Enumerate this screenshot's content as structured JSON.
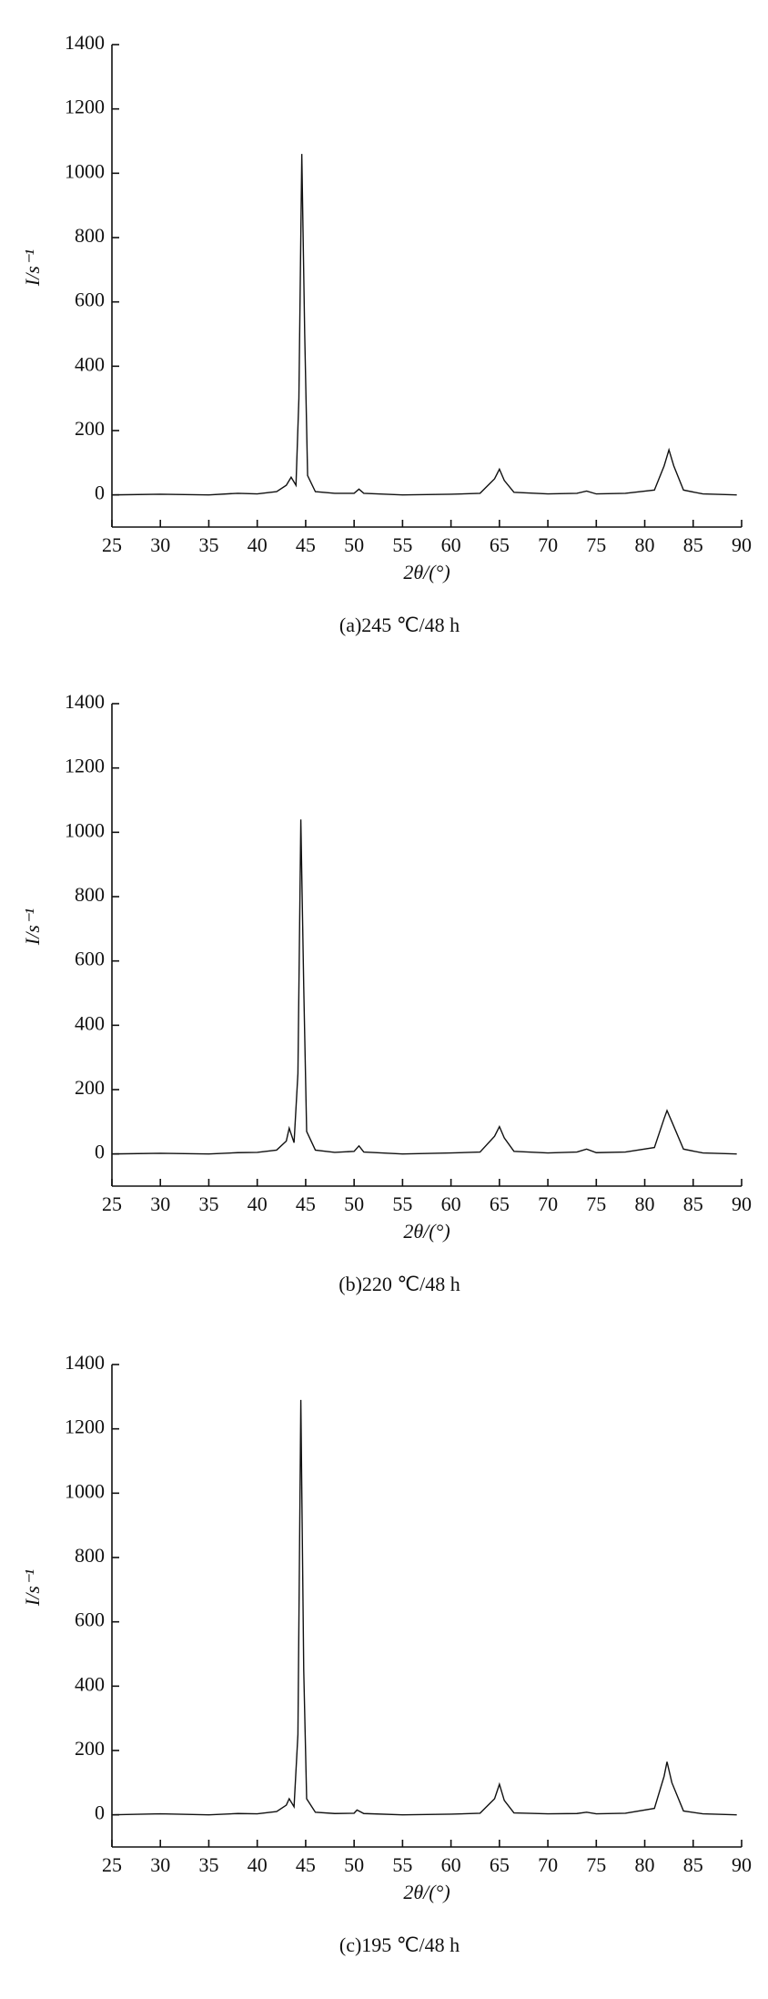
{
  "chart_data": [
    {
      "type": "line",
      "x_label": "2θ/(°)",
      "y_label": "I/s⁻¹",
      "caption": "(a)245 ℃/48 h",
      "color": "#111111",
      "x": [
        25,
        30,
        35,
        38,
        40,
        42,
        43,
        43.5,
        44,
        44.3,
        44.6,
        44.9,
        45.2,
        46,
        48,
        50,
        50.5,
        51,
        55,
        60,
        63,
        64.5,
        65,
        65.5,
        66.5,
        70,
        73,
        74,
        75,
        78,
        81,
        82,
        82.5,
        83,
        84,
        86,
        89.5
      ],
      "values": [
        0,
        2,
        0,
        5,
        3,
        10,
        30,
        55,
        30,
        300,
        1060,
        500,
        60,
        10,
        5,
        5,
        18,
        5,
        0,
        2,
        5,
        50,
        80,
        45,
        8,
        3,
        5,
        12,
        3,
        5,
        15,
        90,
        140,
        90,
        15,
        3,
        0
      ],
      "xlim": [
        25,
        90
      ],
      "xticks": [
        25,
        30,
        35,
        40,
        45,
        50,
        55,
        60,
        65,
        70,
        75,
        80,
        85,
        90
      ],
      "ylim": [
        -100,
        1400
      ],
      "yticks": [
        0,
        200,
        400,
        600,
        800,
        1000,
        1200,
        1400
      ]
    },
    {
      "type": "line",
      "x_label": "2θ/(°)",
      "y_label": "I/s⁻¹",
      "caption": "(b)220 ℃/48 h",
      "color": "#111111",
      "x": [
        25,
        30,
        35,
        38,
        40,
        42,
        43,
        43.3,
        43.8,
        44.2,
        44.5,
        44.8,
        45.1,
        46,
        48,
        50,
        50.5,
        51,
        55,
        60,
        63,
        64.5,
        65,
        65.5,
        66.5,
        70,
        73,
        74,
        75,
        78,
        81,
        82,
        82.3,
        82.8,
        84,
        86,
        89.5
      ],
      "values": [
        0,
        2,
        0,
        4,
        5,
        12,
        40,
        80,
        35,
        250,
        1040,
        520,
        70,
        12,
        5,
        8,
        25,
        6,
        0,
        3,
        6,
        55,
        85,
        50,
        8,
        3,
        6,
        15,
        4,
        6,
        20,
        110,
        135,
        100,
        15,
        3,
        0
      ],
      "xlim": [
        25,
        90
      ],
      "xticks": [
        25,
        30,
        35,
        40,
        45,
        50,
        55,
        60,
        65,
        70,
        75,
        80,
        85,
        90
      ],
      "ylim": [
        -100,
        1400
      ],
      "yticks": [
        0,
        200,
        400,
        600,
        800,
        1000,
        1200,
        1400
      ]
    },
    {
      "type": "line",
      "x_label": "2θ/(°)",
      "y_label": "I/s⁻¹",
      "caption": "(c)195 ℃/48 h",
      "color": "#111111",
      "x": [
        25,
        30,
        35,
        38,
        40,
        42,
        43,
        43.3,
        43.8,
        44.2,
        44.5,
        44.8,
        45.1,
        46,
        48,
        50,
        50.3,
        51,
        55,
        60,
        63,
        64.5,
        65,
        65.5,
        66.5,
        70,
        73,
        74,
        75,
        78,
        81,
        82,
        82.3,
        82.8,
        84,
        86,
        89.5
      ],
      "values": [
        0,
        3,
        0,
        4,
        3,
        10,
        30,
        50,
        25,
        250,
        1290,
        450,
        50,
        8,
        4,
        5,
        15,
        4,
        0,
        2,
        5,
        50,
        95,
        45,
        6,
        3,
        4,
        8,
        3,
        5,
        20,
        120,
        165,
        100,
        12,
        3,
        0
      ],
      "xlim": [
        25,
        90
      ],
      "xticks": [
        25,
        30,
        35,
        40,
        45,
        50,
        55,
        60,
        65,
        70,
        75,
        80,
        85,
        90
      ],
      "ylim": [
        -100,
        1400
      ],
      "yticks": [
        0,
        200,
        400,
        600,
        800,
        1000,
        1200,
        1400
      ]
    }
  ]
}
